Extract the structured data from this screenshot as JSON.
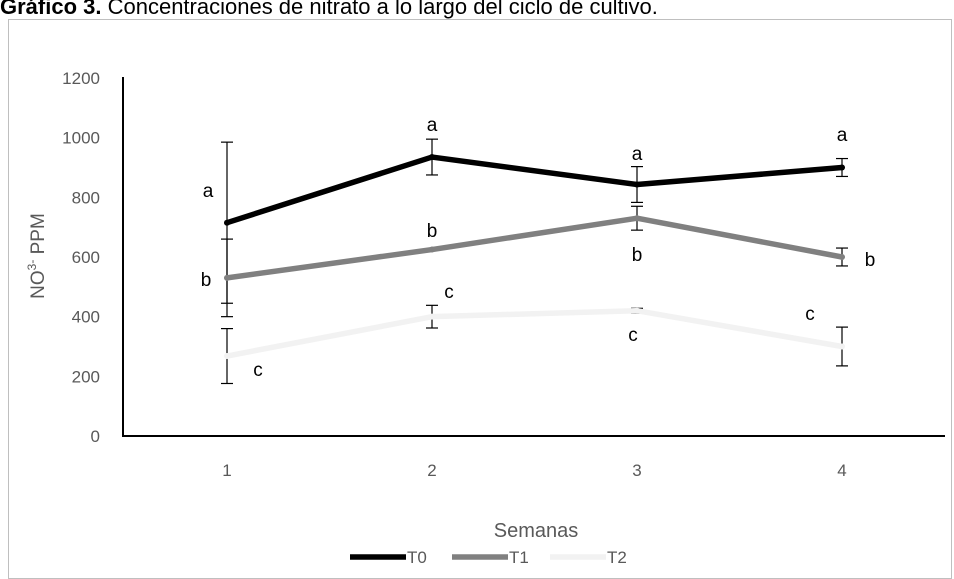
{
  "title": {
    "bold": "Gráfico 3.",
    "rest": " Concentraciones de nitrato a lo largo del ciclo de cultivo."
  },
  "chart_data": {
    "type": "line",
    "title": "",
    "xlabel": "Semanas",
    "ylabel": {
      "main": "NO",
      "sup": "3-",
      "unit": " PPM"
    },
    "categories": [
      "1",
      "2",
      "3",
      "4"
    ],
    "ylim": [
      0,
      1200
    ],
    "yticks": [
      "0",
      "200",
      "400",
      "600",
      "800",
      "1000",
      "1200"
    ],
    "grid": false,
    "legend_position": "bottom",
    "series": [
      {
        "name": "T0",
        "color": "#000000",
        "values": [
          715,
          935,
          843,
          900
        ],
        "errors": [
          270,
          60,
          60,
          30
        ],
        "letters": [
          "a",
          "a",
          "a",
          "a"
        ]
      },
      {
        "name": "T1",
        "color": "#808080",
        "values": [
          530,
          625,
          730,
          600
        ],
        "errors": [
          130,
          0,
          40,
          30
        ],
        "letters": [
          "b",
          "b",
          "b",
          "b"
        ]
      },
      {
        "name": "T2",
        "color": "#f2f2f2",
        "values": [
          268,
          400,
          420,
          300
        ],
        "errors": [
          92,
          38,
          8,
          65
        ],
        "letters": [
          "c",
          "c",
          "c",
          "c"
        ]
      }
    ]
  }
}
